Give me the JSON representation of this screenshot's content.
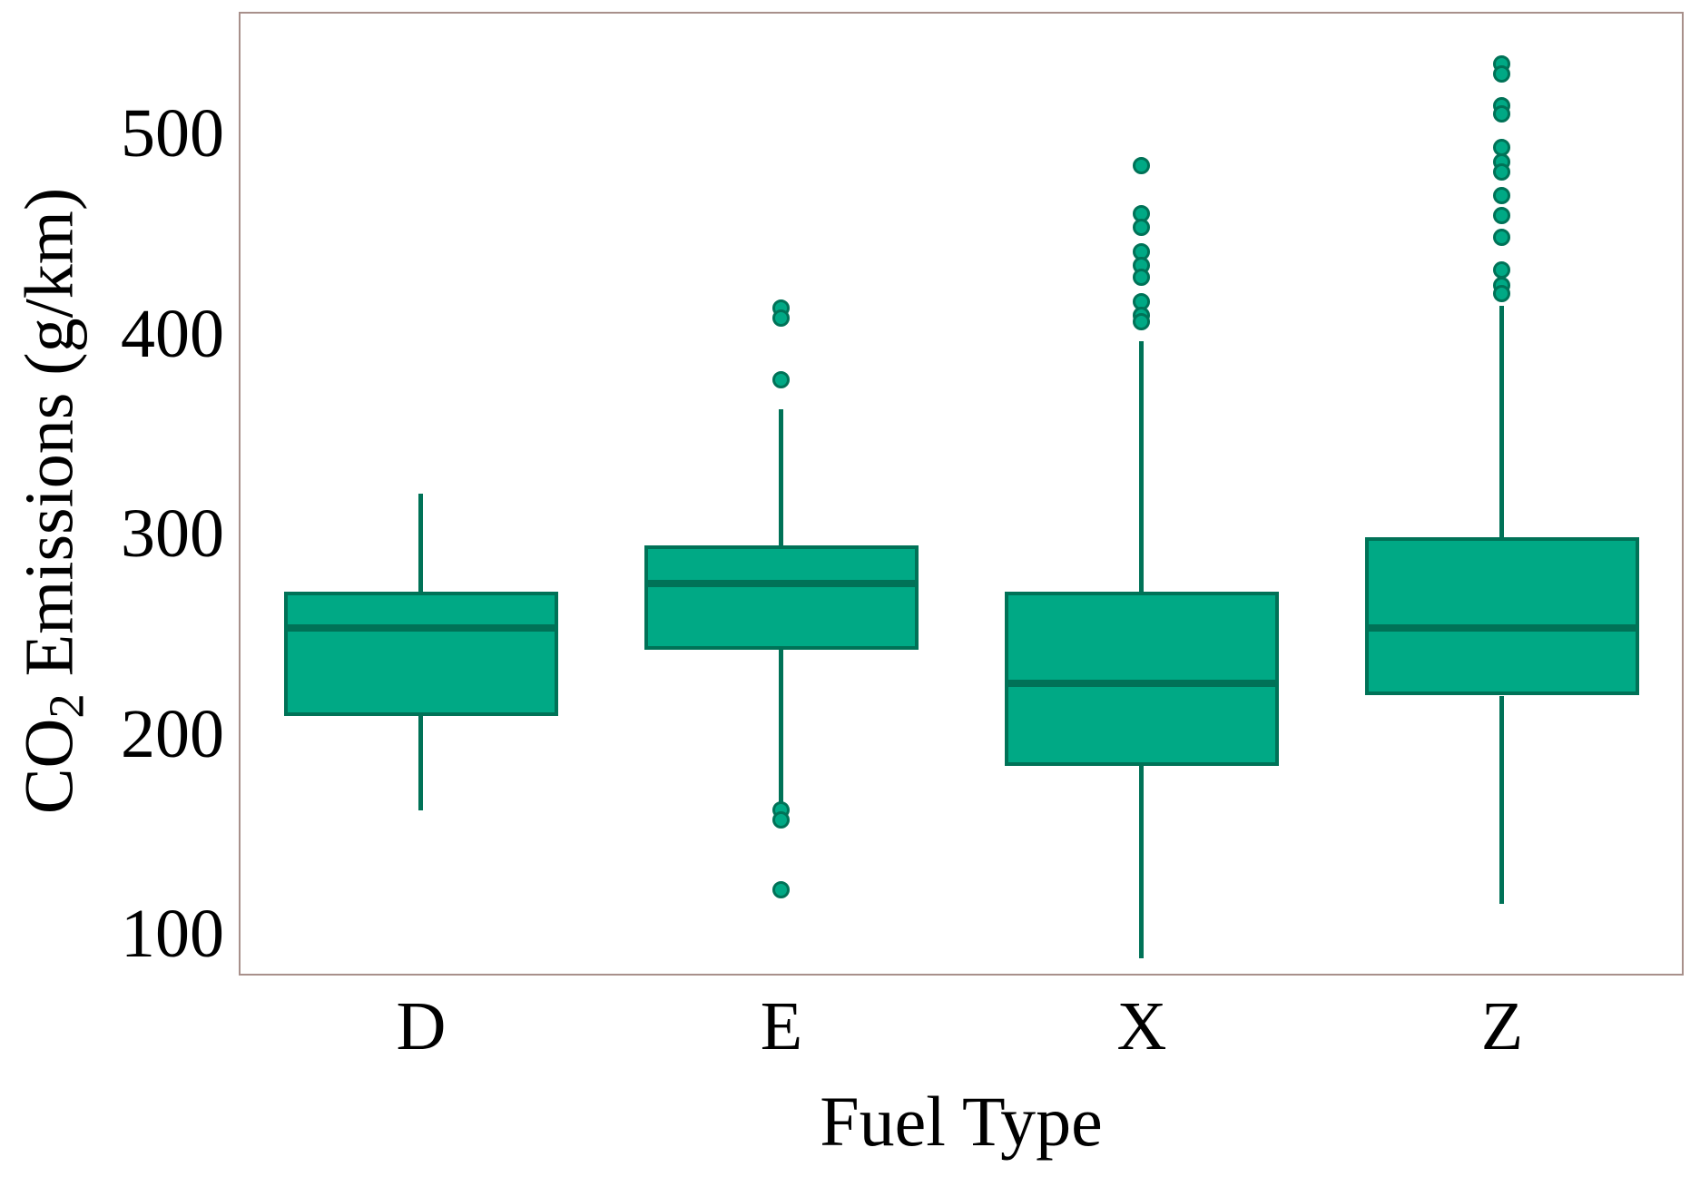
{
  "chart_data": {
    "type": "box",
    "title": "",
    "xlabel": "Fuel Type",
    "ylabel": "CO2 Emissions (g/km)",
    "ylabel_parts": {
      "pre": "CO",
      "sub": "2",
      "post": " Emissions (g/km)"
    },
    "categories": [
      "D",
      "E",
      "X",
      "Z"
    ],
    "yticks": [
      100,
      200,
      300,
      400,
      500
    ],
    "ylim": [
      80,
      560
    ],
    "grid": false,
    "legend": "none",
    "series": [
      {
        "category": "D",
        "whisker_low": 162,
        "q1": 209,
        "median": 253,
        "q3": 271,
        "whisker_high": 320,
        "outliers": []
      },
      {
        "category": "E",
        "whisker_low": 164,
        "q1": 242,
        "median": 275,
        "q3": 294,
        "whisker_high": 362,
        "outliers": [
          413,
          408,
          377,
          162,
          157,
          122
        ]
      },
      {
        "category": "X",
        "whisker_low": 88,
        "q1": 184,
        "median": 225,
        "q3": 271,
        "whisker_high": 396,
        "outliers": [
          484,
          460,
          453,
          441,
          434,
          428,
          416,
          409,
          406
        ]
      },
      {
        "category": "Z",
        "whisker_low": 115,
        "q1": 219,
        "median": 253,
        "q3": 298,
        "whisker_high": 414,
        "outliers": [
          535,
          530,
          514,
          510,
          493,
          486,
          481,
          469,
          459,
          448,
          432,
          424,
          420
        ]
      }
    ],
    "colors": {
      "box_fill": "#00a985",
      "box_edge": "#007257",
      "frame": "#a8908b",
      "text": "#000000",
      "background": "#ffffff"
    }
  }
}
